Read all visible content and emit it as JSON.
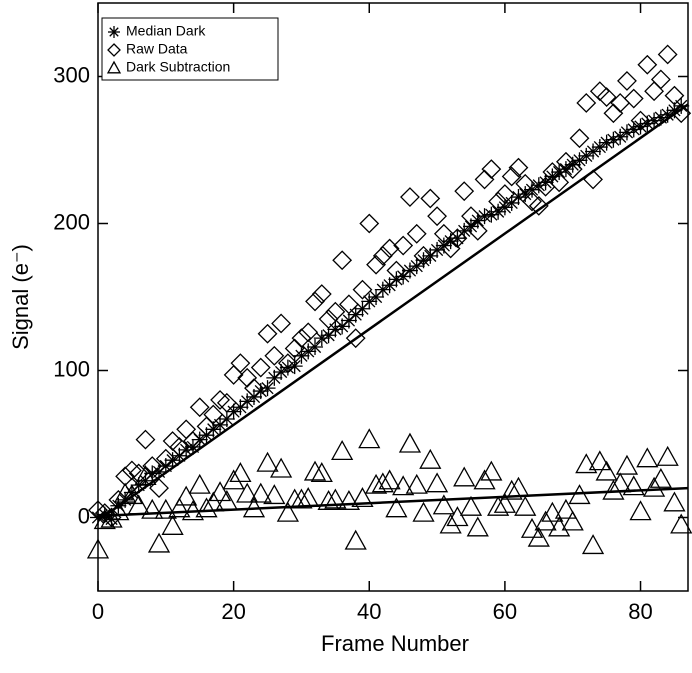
{
  "chart_data": {
    "type": "scatter",
    "xlabel": "Frame Number",
    "ylabel": "Signal (e⁻)",
    "xlim": [
      0,
      87
    ],
    "ylim": [
      -50,
      350
    ],
    "xticks": [
      0,
      20,
      40,
      60,
      80
    ],
    "yticks": [
      0,
      100,
      200,
      300
    ],
    "legend": "upper left",
    "x": [
      0,
      1,
      2,
      3,
      4,
      5,
      6,
      7,
      8,
      9,
      10,
      11,
      12,
      13,
      14,
      15,
      16,
      17,
      18,
      19,
      20,
      21,
      22,
      23,
      24,
      25,
      26,
      27,
      28,
      29,
      30,
      31,
      32,
      33,
      34,
      35,
      36,
      37,
      38,
      39,
      40,
      41,
      42,
      43,
      44,
      45,
      46,
      47,
      48,
      49,
      50,
      51,
      52,
      53,
      54,
      55,
      56,
      57,
      58,
      59,
      60,
      61,
      62,
      63,
      64,
      65,
      66,
      67,
      68,
      69,
      70,
      71,
      72,
      73,
      74,
      75,
      76,
      77,
      78,
      79,
      80,
      81,
      82,
      83,
      84,
      85,
      86
    ],
    "series": [
      {
        "name": "Median Dark",
        "marker": "asterisk",
        "color": "#000000",
        "values": [
          0,
          2,
          -1,
          8,
          12,
          17,
          22,
          25,
          30,
          31,
          35,
          39,
          42,
          46,
          48,
          53,
          56,
          60,
          63,
          67,
          72,
          75,
          79,
          82,
          86,
          88,
          95,
          99,
          102,
          103,
          110,
          113,
          116,
          122,
          124,
          128,
          130,
          134,
          138,
          142,
          147,
          150,
          155,
          158,
          162,
          164,
          168,
          171,
          175,
          178,
          182,
          185,
          188,
          190,
          195,
          198,
          202,
          205,
          206,
          208,
          211,
          214,
          218,
          220,
          223,
          226,
          228,
          232,
          235,
          237,
          240,
          243,
          246,
          249,
          252,
          255,
          257,
          259,
          262,
          264,
          266,
          268,
          270,
          272,
          274,
          277,
          280
        ]
      },
      {
        "name": "Raw Data",
        "marker": "diamond",
        "color": "#000000",
        "values": [
          5,
          3,
          0,
          12,
          28,
          32,
          30,
          53,
          35,
          20,
          40,
          52,
          48,
          60,
          52,
          75,
          62,
          70,
          80,
          78,
          97,
          105,
          95,
          88,
          102,
          125,
          110,
          132,
          105,
          115,
          122,
          126,
          147,
          152,
          135,
          140,
          175,
          145,
          122,
          155,
          200,
          172,
          178,
          183,
          168,
          185,
          218,
          193,
          178,
          217,
          205,
          193,
          183,
          190,
          222,
          205,
          195,
          230,
          237,
          215,
          220,
          232,
          238,
          227,
          215,
          212,
          225,
          235,
          228,
          242,
          237,
          258,
          282,
          230,
          290,
          286,
          275,
          282,
          297,
          285,
          270,
          308,
          290,
          298,
          315,
          287,
          275
        ]
      },
      {
        "name": "Dark Subtraction",
        "marker": "triangle",
        "color": "#000000",
        "values": [
          -22,
          -2,
          -1,
          4,
          16,
          15,
          8,
          28,
          5,
          -18,
          5,
          -6,
          6,
          14,
          4,
          22,
          6,
          10,
          17,
          11,
          25,
          30,
          16,
          6,
          16,
          37,
          15,
          33,
          3,
          12,
          12,
          13,
          31,
          30,
          11,
          12,
          45,
          11,
          -16,
          13,
          53,
          22,
          23,
          25,
          6,
          21,
          50,
          22,
          3,
          39,
          23,
          8,
          -5,
          0,
          27,
          7,
          -7,
          25,
          31,
          7,
          9,
          18,
          20,
          7,
          -8,
          -14,
          -3,
          3,
          -7,
          5,
          -3,
          15,
          36,
          -19,
          38,
          31,
          18,
          23,
          35,
          21,
          4,
          40,
          20,
          26,
          41,
          10,
          -5
        ]
      }
    ],
    "fit_lines": [
      {
        "x": [
          0,
          87
        ],
        "values": [
          -2,
          281
        ]
      },
      {
        "x": [
          0,
          87
        ],
        "values": [
          1,
          20
        ]
      }
    ]
  }
}
